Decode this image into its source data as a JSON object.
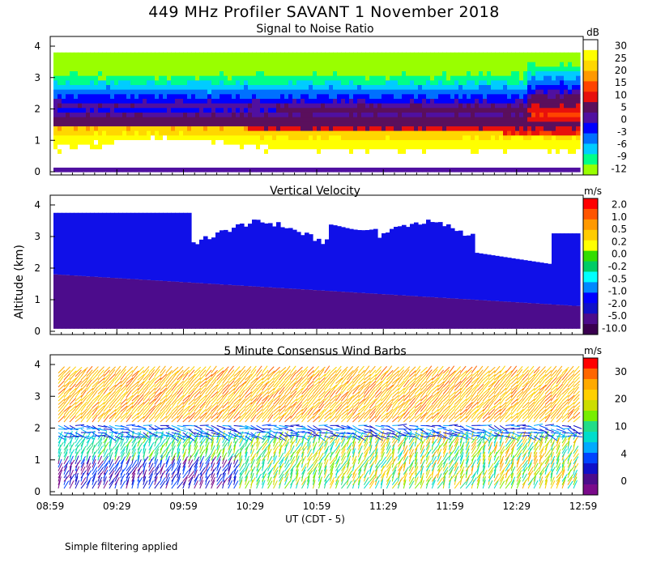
{
  "title": "449 MHz Profiler SAVANT  1 November 2018",
  "y_axis_label": "Altitude (km)",
  "x_axis_label": "UT  (CDT - 5)",
  "footnote": "Simple filtering applied",
  "chart_data": [
    {
      "type": "heatmap",
      "title": "Signal to Noise Ratio",
      "ylim": [
        0,
        4
      ],
      "yticks": [
        "0",
        "1",
        "2",
        "3",
        "4"
      ],
      "xticks": [
        "08:59",
        "09:29",
        "09:59",
        "10:29",
        "10:59",
        "11:29",
        "11:59",
        "12:29",
        "12:59"
      ],
      "colorbar": {
        "unit": "dB",
        "labels": [
          "30",
          "25",
          "20",
          "15",
          "10",
          "5",
          "0",
          "-3",
          "-6",
          "-9",
          "-12"
        ],
        "colors": [
          "#ffffff",
          "#ffff00",
          "#ffd700",
          "#ff9900",
          "#ff4400",
          "#e8100c",
          "#5a0f5c",
          "#5010a0",
          "#0000ff",
          "#0070ff",
          "#00ccff",
          "#00ff88",
          "#99ff00"
        ]
      },
      "bands": [
        {
          "name": "low_snr_aloft",
          "level": "-12 to -3",
          "altitude_km": [
            2.3,
            4.0
          ]
        },
        {
          "name": "mid_layer",
          "level": "0 to 5",
          "altitude_km": [
            1.6,
            2.6
          ]
        },
        {
          "name": "boundary_layer_peak",
          "level": "20 to 25",
          "altitude_km": [
            0.8,
            1.5
          ],
          "time": "09:15-10:00"
        },
        {
          "name": "boundary_layer",
          "level": "10 to 15",
          "altitude_km": [
            0.2,
            1.6
          ]
        }
      ]
    },
    {
      "type": "heatmap",
      "title": "Vertical Velocity",
      "ylim": [
        0,
        4
      ],
      "yticks": [
        "0",
        "1",
        "2",
        "3",
        "4"
      ],
      "xticks": [
        "08:59",
        "09:29",
        "09:59",
        "10:29",
        "10:59",
        "11:29",
        "11:59",
        "12:29",
        "12:59"
      ],
      "colorbar": {
        "unit": "m/s",
        "labels": [
          "2.0",
          "1.0",
          "0.5",
          "0.2",
          "0.0",
          "-0.2",
          "-0.5",
          "-1.0",
          "-2.0",
          "-5.0",
          "-10.0"
        ],
        "colors": [
          "#ff0000",
          "#ff5500",
          "#ff9900",
          "#ffcc00",
          "#ffff00",
          "#33dd00",
          "#00cc66",
          "#00ffff",
          "#0088ff",
          "#0000ff",
          "#1010c8",
          "#4c0c8c",
          "#3a0050"
        ]
      },
      "dominant_levels": [
        {
          "level": "-2.0 to -1.0",
          "altitude_km": [
            1.0,
            3.8
          ]
        },
        {
          "level": "-5.0 to -2.0",
          "altitude_km": [
            0.1,
            1.8
          ]
        }
      ]
    },
    {
      "type": "scatter",
      "title": "5 Minute Consensus Wind Barbs",
      "ylim": [
        0,
        4
      ],
      "yticks": [
        "0",
        "1",
        "2",
        "3",
        "4"
      ],
      "xticks": [
        "08:59",
        "09:29",
        "09:59",
        "10:29",
        "10:59",
        "11:29",
        "11:59",
        "12:29",
        "12:59"
      ],
      "colorbar": {
        "unit": "m/s",
        "labels": [
          "30",
          "20",
          "10",
          "4",
          "0"
        ],
        "colors": [
          "#ff0000",
          "#ff6600",
          "#ffaa00",
          "#ffd000",
          "#ccdd00",
          "#77ee00",
          "#22dd88",
          "#00ddcc",
          "#00aaff",
          "#0044ff",
          "#1010c8",
          "#4c0c8c",
          "#7a0a8a"
        ]
      },
      "layers": [
        {
          "name": "upper_westerlies",
          "speed_ms": "15-20",
          "altitude_km": [
            2.2,
            3.8
          ]
        },
        {
          "name": "low_level_jet",
          "speed_ms": "0-4",
          "altitude_km": [
            1.7,
            2.0
          ]
        },
        {
          "name": "lower_layer",
          "speed_ms": "10-20",
          "altitude_km": [
            0.3,
            1.7
          ]
        }
      ]
    }
  ]
}
